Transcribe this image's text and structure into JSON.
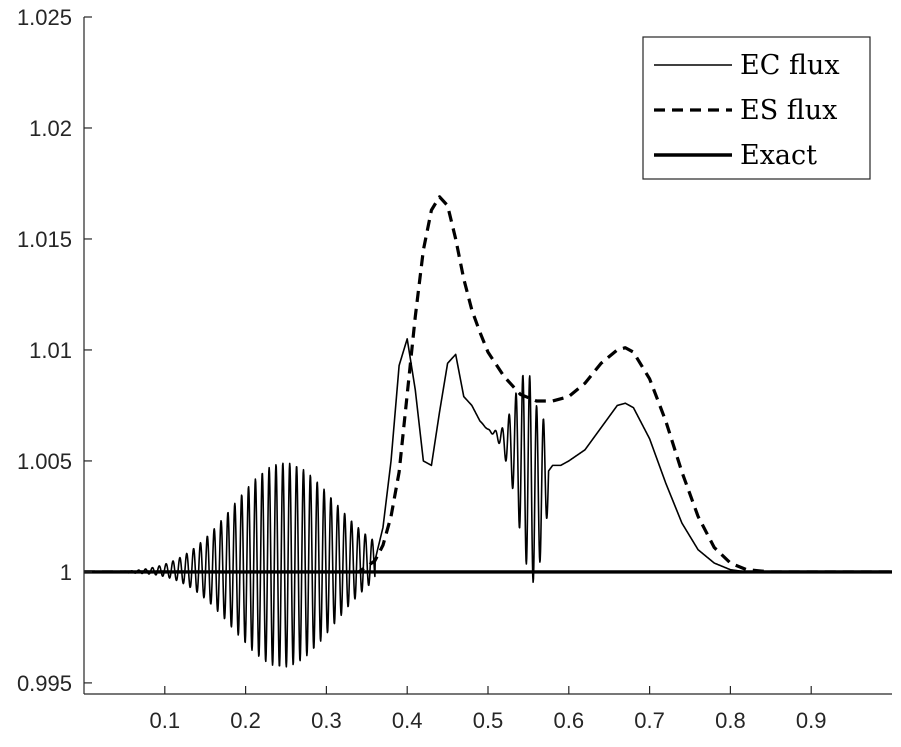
{
  "chart_data": {
    "type": "line",
    "title": "",
    "xlabel": "",
    "ylabel": "",
    "xlim": [
      0,
      1
    ],
    "ylim": [
      0.9945,
      1.025
    ],
    "xticks": [
      0.1,
      0.2,
      0.3,
      0.4,
      0.5,
      0.6,
      0.7,
      0.8,
      0.9
    ],
    "xtick_labels": [
      "0.1",
      "0.2",
      "0.3",
      "0.4",
      "0.5",
      "0.6",
      "0.7",
      "0.8",
      "0.9"
    ],
    "yticks": [
      0.995,
      1,
      1.005,
      1.01,
      1.015,
      1.02,
      1.025
    ],
    "ytick_labels": [
      "0.995",
      "1",
      "1.005",
      "1.01",
      "1.015",
      "1.02",
      "1.025"
    ],
    "grid": false,
    "legend_position": "top-right",
    "series": [
      {
        "name": "EC flux",
        "style": "thin-solid",
        "color": "#000000",
        "x": [
          0,
          0.04,
          0.06,
          0.36,
          0.37,
          0.38,
          0.39,
          0.4,
          0.41,
          0.42,
          0.43,
          0.44,
          0.45,
          0.46,
          0.47,
          0.48,
          0.49,
          0.5,
          0.51,
          0.52,
          0.53,
          0.54,
          0.55,
          0.56,
          0.57,
          0.58,
          0.59,
          0.6,
          0.62,
          0.64,
          0.66,
          0.67,
          0.68,
          0.7,
          0.72,
          0.74,
          0.76,
          0.78,
          0.8,
          0.82,
          1.0
        ],
        "y": [
          1.0,
          1.0,
          1.0,
          1.0005,
          1.002,
          1.005,
          1.0093,
          1.0105,
          1.0082,
          1.005,
          1.0048,
          1.0072,
          1.0094,
          1.0098,
          1.0079,
          1.0075,
          1.0068,
          1.0064,
          1.0062,
          1.0059,
          1.0057,
          1.0052,
          1.0045,
          1.0035,
          1.0043,
          1.0048,
          1.0048,
          1.005,
          1.0055,
          1.0065,
          1.0075,
          1.0076,
          1.0074,
          1.006,
          1.004,
          1.0022,
          1.001,
          1.0004,
          1.0001,
          1.0,
          1.0
        ],
        "oscillations": [
          {
            "x_start": 0.04,
            "x_end": 0.36,
            "center": 0.247,
            "amplitude": 0.0046,
            "period": 0.0085
          },
          {
            "x_start": 0.49,
            "x_end": 0.575,
            "center": 0.552,
            "amplitude": 0.0045,
            "period": 0.0085
          }
        ]
      },
      {
        "name": "ES flux",
        "style": "dashed",
        "color": "#000000",
        "x": [
          0,
          0.34,
          0.36,
          0.37,
          0.38,
          0.39,
          0.4,
          0.41,
          0.42,
          0.43,
          0.44,
          0.45,
          0.46,
          0.47,
          0.48,
          0.49,
          0.5,
          0.52,
          0.54,
          0.56,
          0.58,
          0.6,
          0.62,
          0.64,
          0.66,
          0.67,
          0.68,
          0.7,
          0.72,
          0.74,
          0.76,
          0.78,
          0.8,
          0.82,
          0.85,
          1.0
        ],
        "y": [
          1.0,
          1.0,
          1.0005,
          1.0012,
          1.0025,
          1.0045,
          1.008,
          1.0115,
          1.0145,
          1.0163,
          1.0169,
          1.0165,
          1.015,
          1.0132,
          1.0118,
          1.0108,
          1.0099,
          1.0088,
          1.008,
          1.0077,
          1.0077,
          1.0079,
          1.0085,
          1.0094,
          1.01,
          1.0101,
          1.0099,
          1.0087,
          1.0068,
          1.0045,
          1.0025,
          1.0011,
          1.0004,
          1.0001,
          1.0,
          1.0
        ]
      },
      {
        "name": "Exact",
        "style": "thick-solid",
        "color": "#000000",
        "x": [
          0,
          1.0
        ],
        "y": [
          1.0,
          1.0
        ]
      }
    ]
  }
}
